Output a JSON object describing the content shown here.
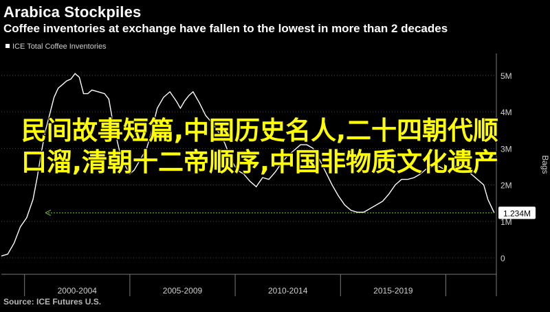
{
  "chart_data": {
    "type": "line",
    "title": "Arabica Stockpiles",
    "subtitle": "Coffee inventories at exchange have fallen to the lowest in more than 2 decades",
    "legend": {
      "entries": [
        "ICE Total Coffee Inventories"
      ],
      "placement": "top-left"
    },
    "ylabel": "Bags",
    "ylim": [
      0,
      5300000
    ],
    "yticks": [
      0,
      1000000,
      2000000,
      3000000,
      4000000,
      5000000
    ],
    "ytick_labels": [
      "0",
      "1M",
      "2M",
      "3M",
      "4M",
      "5M"
    ],
    "xlim": [
      1998.9,
      2022.4
    ],
    "xtick_labels": [
      {
        "label": "2000-2004",
        "center": 2002.5
      },
      {
        "label": "2005-2009",
        "center": 2007.5
      },
      {
        "label": "2010-2014",
        "center": 2012.5
      },
      {
        "label": "2015-2019",
        "center": 2017.5
      }
    ],
    "x_separators": [
      2000,
      2005,
      2010,
      2015,
      2020
    ],
    "grid": "horizontal-dotted",
    "last_value_label": "1.234M",
    "reference_line": {
      "value": 1234000,
      "color": "#7fbf3f",
      "style": "dotted"
    },
    "series": [
      {
        "name": "ICE Total Coffee Inventories",
        "color": "#ffffff",
        "x": [
          1998.9,
          1999.2,
          1999.5,
          1999.8,
          2000.1,
          2000.4,
          2000.6,
          2000.8,
          2001.0,
          2001.2,
          2001.4,
          2001.6,
          2001.8,
          2002.0,
          2002.2,
          2002.4,
          2002.6,
          2002.8,
          2003.0,
          2003.2,
          2003.5,
          2003.8,
          2004.0,
          2004.2,
          2004.5,
          2004.8,
          2005.0,
          2005.2,
          2005.5,
          2005.8,
          2006.0,
          2006.3,
          2006.6,
          2006.9,
          2007.2,
          2007.4,
          2007.6,
          2007.8,
          2008.0,
          2008.3,
          2008.6,
          2008.9,
          2009.2,
          2009.5,
          2009.8,
          2010.1,
          2010.4,
          2010.7,
          2011.0,
          2011.3,
          2011.6,
          2011.9,
          2012.2,
          2012.5,
          2012.8,
          2013.1,
          2013.4,
          2013.7,
          2014.0,
          2014.3,
          2014.6,
          2014.9,
          2015.2,
          2015.5,
          2015.8,
          2016.1,
          2016.4,
          2016.7,
          2017.0,
          2017.3,
          2017.6,
          2017.9,
          2018.2,
          2018.5,
          2018.8,
          2019.1,
          2019.4,
          2019.7,
          2020.0,
          2020.3,
          2020.6,
          2020.9,
          2021.2,
          2021.5,
          2021.8,
          2022.0,
          2022.3
        ],
        "values": [
          50000,
          100000,
          400000,
          850000,
          1100000,
          1600000,
          2200000,
          2900000,
          3500000,
          3950000,
          4400000,
          4650000,
          4750000,
          4850000,
          4900000,
          5050000,
          4950000,
          4500000,
          4500000,
          4600000,
          4550000,
          4500000,
          4350000,
          3700000,
          2950000,
          2500000,
          2300000,
          2400000,
          2700000,
          3000000,
          3400000,
          4100000,
          4400000,
          4550000,
          4300000,
          4100000,
          4300000,
          4450000,
          4550000,
          4250000,
          3900000,
          3700000,
          3450000,
          3150000,
          2700000,
          2400000,
          2300000,
          2100000,
          1950000,
          2200000,
          2150000,
          2350000,
          2600000,
          2800000,
          2950000,
          3100000,
          3100000,
          3000000,
          2700000,
          2350000,
          2000000,
          1700000,
          1450000,
          1300000,
          1250000,
          1250000,
          1350000,
          1450000,
          1550000,
          1750000,
          2000000,
          2150000,
          2150000,
          2200000,
          2300000,
          2450000,
          2500000,
          2500000,
          2400000,
          2400000,
          2600000,
          2500000,
          2300000,
          2150000,
          2000000,
          1600000,
          1234000
        ]
      }
    ]
  },
  "source": "Source: ICE Futures U.S.",
  "overlay_text": "民间故事短篇,中国历史名人,二十四朝代顺口溜,清朝十二帝顺序,中国非物质文化遗产"
}
